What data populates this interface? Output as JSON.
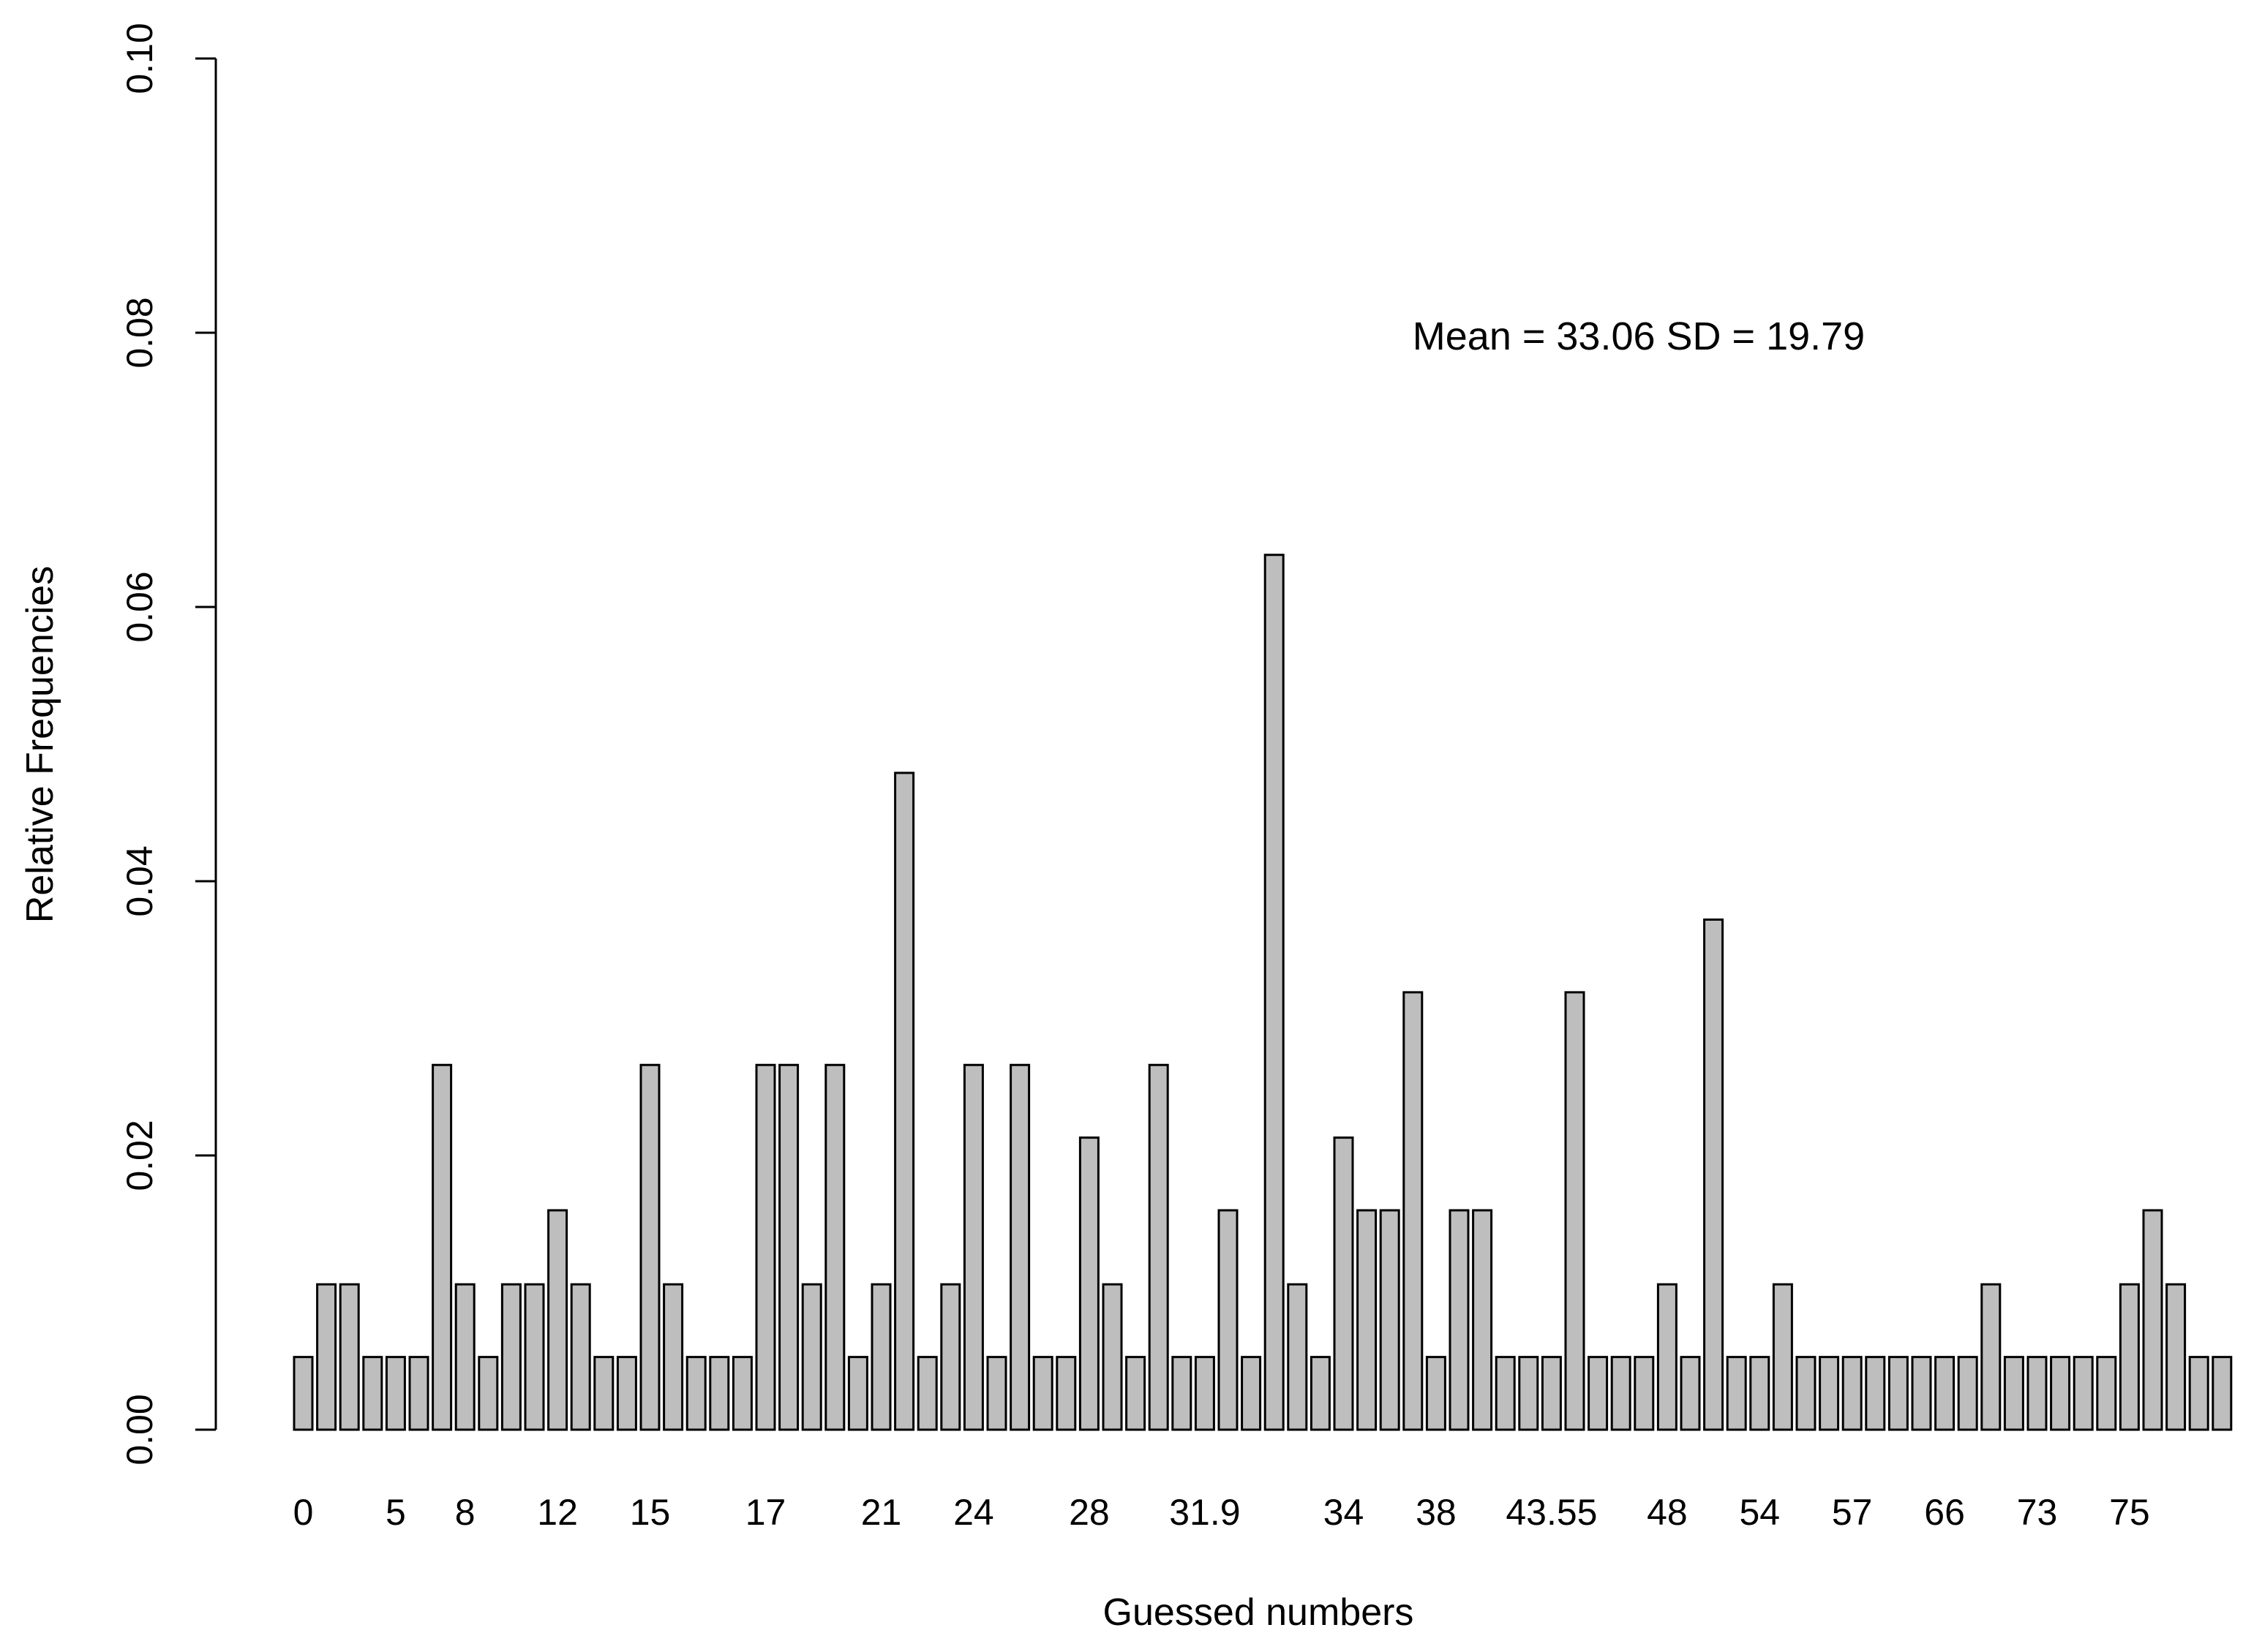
{
  "chart_data": {
    "type": "bar",
    "xlabel": "Guessed numbers",
    "ylabel": "Relative Frequencies",
    "ylim": [
      0,
      0.1
    ],
    "yticks": [
      0,
      0.02,
      0.04,
      0.06,
      0.08,
      0.1
    ],
    "ytick_labels": [
      "0.00",
      "0.02",
      "0.04",
      "0.06",
      "0.08",
      "0.10"
    ],
    "annotation": "Mean = 33.06 SD = 19.79",
    "bar_color": "#bebebe",
    "border_color": "#000000",
    "tick_labels": [
      {
        "label": "0",
        "bar_index": 0
      },
      {
        "label": "5",
        "bar_index": 4
      },
      {
        "label": "8",
        "bar_index": 7
      },
      {
        "label": "12",
        "bar_index": 11
      },
      {
        "label": "15",
        "bar_index": 15
      },
      {
        "label": "17",
        "bar_index": 20
      },
      {
        "label": "21",
        "bar_index": 25
      },
      {
        "label": "24",
        "bar_index": 29
      },
      {
        "label": "28",
        "bar_index": 34
      },
      {
        "label": "31.9",
        "bar_index": 39
      },
      {
        "label": "34",
        "bar_index": 45
      },
      {
        "label": "38",
        "bar_index": 49
      },
      {
        "label": "43.55",
        "bar_index": 54
      },
      {
        "label": "48",
        "bar_index": 59
      },
      {
        "label": "54",
        "bar_index": 63
      },
      {
        "label": "57",
        "bar_index": 67
      },
      {
        "label": "66",
        "bar_index": 71
      },
      {
        "label": "73",
        "bar_index": 75
      },
      {
        "label": "75",
        "bar_index": 79
      }
    ],
    "values": [
      0.0053,
      0.0106,
      0.0106,
      0.0053,
      0.0053,
      0.0053,
      0.0266,
      0.0106,
      0.0053,
      0.0106,
      0.0106,
      0.016,
      0.0106,
      0.0053,
      0.0053,
      0.0266,
      0.0106,
      0.0053,
      0.0053,
      0.0053,
      0.0266,
      0.0266,
      0.0106,
      0.0266,
      0.0053,
      0.0106,
      0.0479,
      0.0053,
      0.0106,
      0.0266,
      0.0053,
      0.0266,
      0.0053,
      0.0053,
      0.0213,
      0.0106,
      0.0053,
      0.0266,
      0.0053,
      0.0053,
      0.016,
      0.0053,
      0.0638,
      0.0106,
      0.0053,
      0.0213,
      0.016,
      0.016,
      0.0319,
      0.0053,
      0.016,
      0.016,
      0.0053,
      0.0053,
      0.0053,
      0.0319,
      0.0053,
      0.0053,
      0.0053,
      0.0106,
      0.0053,
      0.0372,
      0.0053,
      0.0053,
      0.0106,
      0.0053,
      0.0053,
      0.0053,
      0.0053,
      0.0053,
      0.0053,
      0.0053,
      0.0053,
      0.0106,
      0.0053,
      0.0053,
      0.0053,
      0.0053,
      0.0053,
      0.0106,
      0.016,
      0.0106,
      0.0053,
      0.0053
    ]
  }
}
